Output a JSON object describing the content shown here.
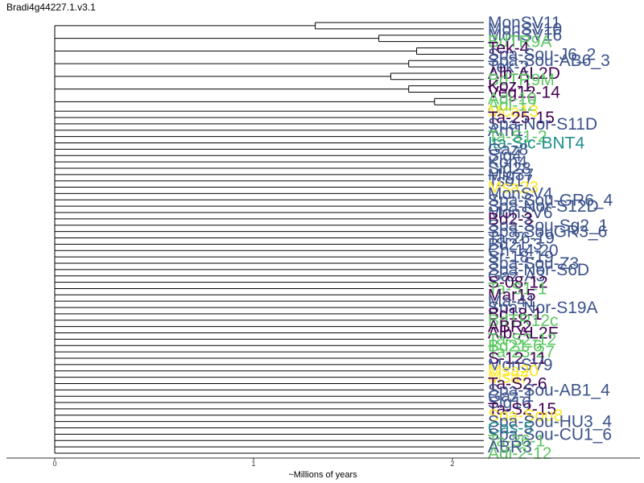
{
  "page_title": "Bradi4g44227.1.v3.1",
  "colors": {
    "purple": "#440154",
    "blue": "#3b528b",
    "teal": "#21908c",
    "green": "#5dc863",
    "yellow": "#fde725",
    "branch": "#000000"
  },
  "chart_data": {
    "type": "dendrogram",
    "title": "Bradi4g44227.1.v3.1",
    "xlabel": "~Millions of years",
    "ylabel": "",
    "xlim": [
      0,
      2.9
    ],
    "xticks": [
      0,
      1,
      2
    ],
    "grid": false,
    "legend": "none",
    "tips": [
      {
        "label": "MonSV11",
        "color": "blue"
      },
      {
        "label": "MonSV10",
        "color": "blue"
      },
      {
        "label": "MonSV16",
        "color": "blue"
      },
      {
        "label": "BdTR9A",
        "color": "green"
      },
      {
        "label": "Tek-4",
        "color": "purple"
      },
      {
        "label": "Spa-Sou-J6_2",
        "color": "blue"
      },
      {
        "label": "Spa-Sou-AB6_3",
        "color": "blue"
      },
      {
        "label": "Tek-2",
        "color": "blue"
      },
      {
        "label": "Alb-AL2D",
        "color": "purple"
      },
      {
        "label": "BdTR9M",
        "color": "green"
      },
      {
        "label": "Koz-1",
        "color": "purple"
      },
      {
        "label": "Veg12-14",
        "color": "purple"
      },
      {
        "label": "Adi-10",
        "color": "green"
      },
      {
        "label": "Adi-12",
        "color": "green"
      },
      {
        "label": "Mca13",
        "color": "yellow"
      },
      {
        "label": "Ta-25-15",
        "color": "purple"
      },
      {
        "label": "Spa-Nor-S11D",
        "color": "blue"
      },
      {
        "label": "Arn1",
        "color": "blue"
      },
      {
        "label": "Ta-S1-2",
        "color": "green"
      },
      {
        "label": "Ita-Sic-BNT4",
        "color": "teal"
      },
      {
        "label": "Gaz8",
        "color": "blue"
      },
      {
        "label": "Sig4",
        "color": "blue"
      },
      {
        "label": "Kon4",
        "color": "blue"
      },
      {
        "label": "Sig28",
        "color": "blue"
      },
      {
        "label": "Mig37",
        "color": "blue"
      },
      {
        "label": "Tso17",
        "color": "blue"
      },
      {
        "label": "Msa23",
        "color": "yellow"
      },
      {
        "label": "MonSV4",
        "color": "blue"
      },
      {
        "label": "Spa-Sou-GR6_4",
        "color": "blue"
      },
      {
        "label": "Spa-Nor-S12D",
        "color": "blue"
      },
      {
        "label": "MonSV6",
        "color": "blue"
      },
      {
        "label": "Bd2-3",
        "color": "purple"
      },
      {
        "label": "Spa-Sou-Sg2_1",
        "color": "blue"
      },
      {
        "label": "Spa-SouGR3_6",
        "color": "blue"
      },
      {
        "label": "Ta-26-19",
        "color": "blue"
      },
      {
        "label": "Bd21-3",
        "color": "blue"
      },
      {
        "label": "Ch-14-20",
        "color": "blue"
      },
      {
        "label": "Sr-18-19",
        "color": "blue"
      },
      {
        "label": "Spa-Sou-Z3",
        "color": "blue"
      },
      {
        "label": "Spa-Nor-S6D",
        "color": "blue"
      },
      {
        "label": "Gaz-A3",
        "color": "blue"
      },
      {
        "label": "S-08-12",
        "color": "purple"
      },
      {
        "label": "Ta-S1-1",
        "color": "green"
      },
      {
        "label": "Mar15",
        "color": "purple"
      },
      {
        "label": "Ma-41",
        "color": "blue"
      },
      {
        "label": "Spa-Nor-S19A",
        "color": "blue"
      },
      {
        "label": "Bd18-1",
        "color": "purple"
      },
      {
        "label": "BdTR12c",
        "color": "green"
      },
      {
        "label": "ABR2",
        "color": "purple"
      },
      {
        "label": "Alb-AL2F",
        "color": "purple"
      },
      {
        "label": "Ta-S2-12",
        "color": "green"
      },
      {
        "label": "Bd21-6",
        "color": "green"
      },
      {
        "label": "Ta-23-27",
        "color": "green"
      },
      {
        "label": "S-12-11",
        "color": "purple"
      },
      {
        "label": "MonSV9",
        "color": "blue"
      },
      {
        "label": "Msa20",
        "color": "yellow"
      },
      {
        "label": "Msa7",
        "color": "yellow"
      },
      {
        "label": "Ta-S2-6",
        "color": "purple"
      },
      {
        "label": "Spa-Sou-AB1_4",
        "color": "blue"
      },
      {
        "label": "Gaz-1",
        "color": "blue"
      },
      {
        "label": "Sig16",
        "color": "blue"
      },
      {
        "label": "Ta-S2-15",
        "color": "purple"
      },
      {
        "label": "Spa-Sou8",
        "color": "yellow"
      },
      {
        "label": "Spa-Sou-HU3_4",
        "color": "blue"
      },
      {
        "label": "Cas-5",
        "color": "teal"
      },
      {
        "label": "Spa-Sou-CU1_6",
        "color": "blue"
      },
      {
        "label": "Ta-36-1",
        "color": "green"
      },
      {
        "label": "ABR3",
        "color": "blue"
      },
      {
        "label": "Adi-2-12",
        "color": "green"
      }
    ],
    "clusters": [
      {
        "members": [
          0,
          1
        ],
        "height": 1.31
      },
      {
        "members": [
          2,
          3
        ],
        "height": 1.63
      },
      {
        "members": [
          4,
          5
        ],
        "height": 1.82
      },
      {
        "members": [
          6,
          7
        ],
        "height": 1.78
      },
      {
        "members": [
          8,
          9
        ],
        "height": 1.69
      },
      {
        "members": [
          10,
          11
        ],
        "height": 1.78
      },
      {
        "members": [
          12,
          13
        ],
        "height": 1.91
      }
    ]
  }
}
